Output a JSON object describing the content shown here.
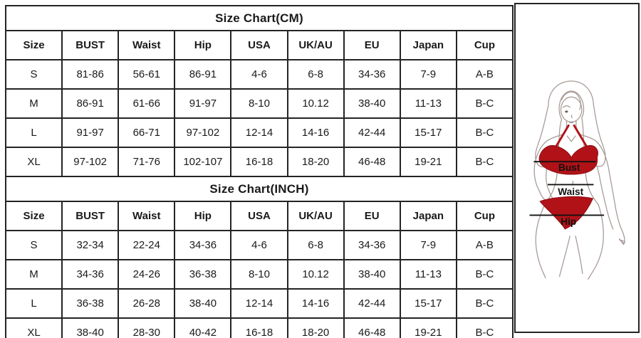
{
  "theme": {
    "background": "#ffffff",
    "text": "#1a1a1a",
    "border": "#242424"
  },
  "tables": [
    {
      "title": "Size Chart(CM)",
      "headers": [
        "Size",
        "BUST",
        "Waist",
        "Hip",
        "USA",
        "UK/AU",
        "EU",
        "Japan",
        "Cup"
      ],
      "rows": [
        [
          "S",
          "81-86",
          "56-61",
          "86-91",
          "4-6",
          "6-8",
          "34-36",
          "7-9",
          "A-B"
        ],
        [
          "M",
          "86-91",
          "61-66",
          "91-97",
          "8-10",
          "10.12",
          "38-40",
          "11-13",
          "B-C"
        ],
        [
          "L",
          "91-97",
          "66-71",
          "97-102",
          "12-14",
          "14-16",
          "42-44",
          "15-17",
          "B-C"
        ],
        [
          "XL",
          "97-102",
          "71-76",
          "102-107",
          "16-18",
          "18-20",
          "46-48",
          "19-21",
          "B-C"
        ]
      ]
    },
    {
      "title": "Size Chart(INCH)",
      "headers": [
        "Size",
        "BUST",
        "Waist",
        "Hip",
        "USA",
        "UK/AU",
        "EU",
        "Japan",
        "Cup"
      ],
      "rows": [
        [
          "S",
          "32-34",
          "22-24",
          "34-36",
          "4-6",
          "6-8",
          "34-36",
          "7-9",
          "A-B"
        ],
        [
          "M",
          "34-36",
          "24-26",
          "36-38",
          "8-10",
          "10.12",
          "38-40",
          "11-13",
          "B-C"
        ],
        [
          "L",
          "36-38",
          "26-28",
          "38-40",
          "12-14",
          "14-16",
          "42-44",
          "15-17",
          "B-C"
        ],
        [
          "XL",
          "38-40",
          "28-30",
          "40-42",
          "16-18",
          "18-20",
          "46-48",
          "19-21",
          "B-C"
        ]
      ]
    }
  ],
  "figure": {
    "labels": {
      "bust": "Bust",
      "waist": "Waist",
      "hip": "Hip"
    },
    "colors": {
      "bikini": "#b11218",
      "outline": "#a79a96",
      "measure_line": "#111111"
    }
  }
}
